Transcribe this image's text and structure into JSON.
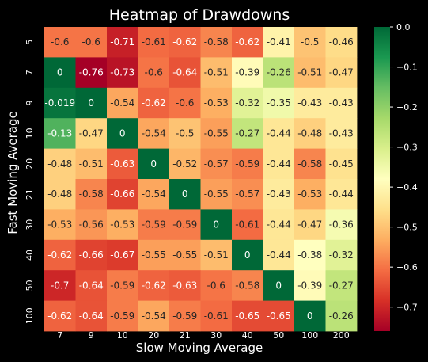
{
  "chart_data": {
    "type": "heatmap",
    "title": "Heatmap of Drawdowns",
    "xlabel": "Slow Moving Average",
    "ylabel": "Fast Moving Average",
    "x_categories": [
      "7",
      "9",
      "10",
      "20",
      "21",
      "30",
      "40",
      "50",
      "100",
      "200"
    ],
    "y_categories": [
      "5",
      "7",
      "9",
      "10",
      "20",
      "21",
      "30",
      "40",
      "50",
      "100"
    ],
    "values": [
      [
        -0.6,
        -0.6,
        -0.71,
        -0.61,
        -0.62,
        -0.58,
        -0.62,
        -0.41,
        -0.5,
        -0.46
      ],
      [
        0,
        -0.76,
        -0.73,
        -0.6,
        -0.64,
        -0.51,
        -0.39,
        -0.26,
        -0.51,
        -0.47
      ],
      [
        -0.019,
        0,
        -0.54,
        -0.62,
        -0.6,
        -0.53,
        -0.32,
        -0.35,
        -0.43,
        -0.43
      ],
      [
        -0.13,
        -0.47,
        0,
        -0.54,
        -0.5,
        -0.55,
        -0.27,
        -0.44,
        -0.48,
        -0.43
      ],
      [
        -0.48,
        -0.51,
        -0.63,
        0,
        -0.52,
        -0.57,
        -0.59,
        -0.44,
        -0.58,
        -0.45
      ],
      [
        -0.48,
        -0.58,
        -0.66,
        -0.54,
        0,
        -0.55,
        -0.57,
        -0.43,
        -0.53,
        -0.44
      ],
      [
        -0.53,
        -0.56,
        -0.53,
        -0.59,
        -0.59,
        0,
        -0.61,
        -0.44,
        -0.47,
        -0.36
      ],
      [
        -0.62,
        -0.66,
        -0.67,
        -0.55,
        -0.55,
        -0.51,
        0,
        -0.44,
        -0.38,
        -0.32
      ],
      [
        -0.7,
        -0.64,
        -0.59,
        -0.62,
        -0.63,
        -0.6,
        -0.58,
        0,
        -0.39,
        -0.27
      ],
      [
        -0.62,
        -0.64,
        -0.59,
        -0.54,
        -0.59,
        -0.61,
        -0.65,
        -0.65,
        0,
        -0.26
      ]
    ],
    "labels": [
      [
        "-0.6",
        "-0.6",
        "-0.71",
        "-0.61",
        "-0.62",
        "-0.58",
        "-0.62",
        "-0.41",
        "-0.5",
        "-0.46"
      ],
      [
        "0",
        "-0.76",
        "-0.73",
        "-0.6",
        "-0.64",
        "-0.51",
        "-0.39",
        "-0.26",
        "-0.51",
        "-0.47"
      ],
      [
        "-0.019",
        "0",
        "-0.54",
        "-0.62",
        "-0.6",
        "-0.53",
        "-0.32",
        "-0.35",
        "-0.43",
        "-0.43"
      ],
      [
        "-0.13",
        "-0.47",
        "0",
        "-0.54",
        "-0.5",
        "-0.55",
        "-0.27",
        "-0.44",
        "-0.48",
        "-0.43"
      ],
      [
        "-0.48",
        "-0.51",
        "-0.63",
        "0",
        "-0.52",
        "-0.57",
        "-0.59",
        "-0.44",
        "-0.58",
        "-0.45"
      ],
      [
        "-0.48",
        "-0.58",
        "-0.66",
        "-0.54",
        "0",
        "-0.55",
        "-0.57",
        "-0.43",
        "-0.53",
        "-0.44"
      ],
      [
        "-0.53",
        "-0.56",
        "-0.53",
        "-0.59",
        "-0.59",
        "0",
        "-0.61",
        "-0.44",
        "-0.47",
        "-0.36"
      ],
      [
        "-0.62",
        "-0.66",
        "-0.67",
        "-0.55",
        "-0.55",
        "-0.51",
        "0",
        "-0.44",
        "-0.38",
        "-0.32"
      ],
      [
        "-0.7",
        "-0.64",
        "-0.59",
        "-0.62",
        "-0.63",
        "-0.6",
        "-0.58",
        "0",
        "-0.39",
        "-0.27"
      ],
      [
        "-0.62",
        "-0.64",
        "-0.59",
        "-0.54",
        "-0.59",
        "-0.61",
        "-0.65",
        "-0.65",
        "0",
        "-0.26"
      ]
    ],
    "colormap": "RdYlGn",
    "vmin": -0.76,
    "vmax": 0,
    "colorbar_ticks": [
      0.0,
      -0.1,
      -0.2,
      -0.3,
      -0.4,
      -0.5,
      -0.6,
      -0.7
    ],
    "colorbar_tick_labels": [
      "0.0",
      "−0.1",
      "−0.2",
      "−0.3",
      "−0.4",
      "−0.5",
      "−0.6",
      "−0.7"
    ],
    "background": "#000000",
    "text_color": "#ffffff"
  }
}
